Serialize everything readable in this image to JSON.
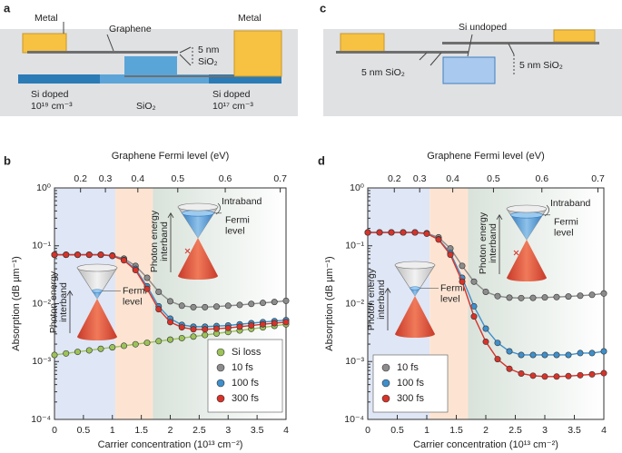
{
  "diagram_a": {
    "panel": "a",
    "metal_left": "Metal",
    "graphene": "Graphene",
    "oxide_thickness": "5 nm",
    "oxide_material": "SiO₂",
    "doped_left": "Si doped",
    "doped_left_level": "10¹⁹ cm⁻³",
    "substrate": "SiO₂",
    "doped_right": "Si doped",
    "doped_right_level": "10¹⁷ cm⁻³",
    "metal_right": "Metal"
  },
  "diagram_c": {
    "panel": "c",
    "undoped": "Si undoped",
    "oxide_left": "5 nm SiO₂",
    "oxide_right": "5 nm SiO₂"
  },
  "chart_data": [
    {
      "type": "line",
      "panel": "b",
      "x2label": "Graphene Fermi level (eV)",
      "xlabel": "Carrier concentration (10¹³ cm⁻²)",
      "ylabel": "Absorption (dB µm⁻¹)",
      "log_y": true,
      "xlim": [
        0,
        4
      ],
      "xticks": [
        0,
        0.5,
        1,
        1.5,
        2,
        2.5,
        3,
        3.5,
        4
      ],
      "x2ticks": [
        0.2,
        0.3,
        0.4,
        0.5,
        0.6,
        0.7
      ],
      "ylim": [
        0.0001,
        1
      ],
      "yticks": [
        {
          "value": 0.0001,
          "label": "10⁻⁴"
        },
        {
          "value": 0.001,
          "label": "10⁻³"
        },
        {
          "value": 0.01,
          "label": "10⁻²"
        },
        {
          "value": 0.1,
          "label": "10⁻¹"
        },
        {
          "value": 1,
          "label": "10⁰"
        }
      ],
      "legend": "lower right",
      "shaded_regions": [
        {
          "from": 0,
          "to": 1.05,
          "color": "#dfe6f5"
        },
        {
          "from": 1.05,
          "to": 1.7,
          "color": "#fde4d2"
        },
        {
          "from": 1.7,
          "to": 4,
          "color": "#d8e2da"
        }
      ],
      "insets": [
        {
          "texts": [
            "Photon energy",
            "interband",
            "Fermi",
            "level"
          ]
        },
        {
          "texts": [
            "Intraband",
            "Fermi",
            "level",
            "Photon energy",
            "interband"
          ]
        }
      ],
      "x": [
        0,
        0.2,
        0.4,
        0.6,
        0.8,
        1,
        1.2,
        1.4,
        1.6,
        1.8,
        2,
        2.2,
        2.4,
        2.6,
        2.8,
        3,
        3.2,
        3.4,
        3.6,
        3.8,
        4
      ],
      "series": [
        {
          "name": "Si loss",
          "color": "#9cc25a",
          "values": [
            0.0013,
            0.00138,
            0.00147,
            0.00156,
            0.00166,
            0.00176,
            0.00187,
            0.00199,
            0.00211,
            0.00225,
            0.00239,
            0.00254,
            0.0027,
            0.00287,
            0.00305,
            0.00324,
            0.00344,
            0.00366,
            0.00389,
            0.00413,
            0.0044
          ]
        },
        {
          "name": "10 fs",
          "color": "#8c8c8c",
          "values": [
            0.07,
            0.07,
            0.07,
            0.07,
            0.07,
            0.068,
            0.06,
            0.045,
            0.028,
            0.016,
            0.011,
            0.0092,
            0.0087,
            0.0087,
            0.0089,
            0.0092,
            0.0095,
            0.0099,
            0.0103,
            0.0107,
            0.0112
          ]
        },
        {
          "name": "100 fs",
          "color": "#3f8fcb",
          "values": [
            0.07,
            0.07,
            0.07,
            0.07,
            0.07,
            0.067,
            0.057,
            0.04,
            0.02,
            0.009,
            0.0055,
            0.0043,
            0.004,
            0.004,
            0.0041,
            0.0042,
            0.0044,
            0.0046,
            0.0048,
            0.005,
            0.0052
          ]
        },
        {
          "name": "300 fs",
          "color": "#d6332a",
          "values": [
            0.07,
            0.07,
            0.07,
            0.07,
            0.07,
            0.067,
            0.056,
            0.038,
            0.018,
            0.008,
            0.0048,
            0.0039,
            0.0036,
            0.0036,
            0.0037,
            0.0038,
            0.004,
            0.0042,
            0.0044,
            0.0046,
            0.0048
          ]
        }
      ]
    },
    {
      "type": "line",
      "panel": "d",
      "x2label": "Graphene Fermi level (eV)",
      "xlabel": "Carrier concentration (10¹³ cm⁻²)",
      "ylabel": "Absorption (dB µm⁻¹)",
      "log_y": true,
      "xlim": [
        0,
        4
      ],
      "xticks": [
        0,
        0.5,
        1,
        1.5,
        2,
        2.5,
        3,
        3.5,
        4
      ],
      "x2ticks": [
        0.2,
        0.3,
        0.4,
        0.5,
        0.6,
        0.7
      ],
      "ylim": [
        0.0001,
        1
      ],
      "yticks": [
        {
          "value": 0.0001,
          "label": "10⁻⁴"
        },
        {
          "value": 0.001,
          "label": "10⁻³"
        },
        {
          "value": 0.01,
          "label": "10⁻²"
        },
        {
          "value": 0.1,
          "label": "10⁻¹"
        },
        {
          "value": 1,
          "label": "10⁰"
        }
      ],
      "legend": "lower left",
      "shaded_regions": [
        {
          "from": 0,
          "to": 1.05,
          "color": "#dfe6f5"
        },
        {
          "from": 1.05,
          "to": 1.7,
          "color": "#fde4d2"
        },
        {
          "from": 1.7,
          "to": 4,
          "color": "#d8e2da"
        }
      ],
      "insets": [
        {
          "texts": [
            "Photon energy",
            "interband",
            "Fermi",
            "level"
          ]
        },
        {
          "texts": [
            "Intraband",
            "Fermi",
            "level",
            "Photon energy",
            "interband"
          ]
        }
      ],
      "x": [
        0,
        0.2,
        0.4,
        0.6,
        0.8,
        1,
        1.2,
        1.4,
        1.6,
        1.8,
        2,
        2.2,
        2.4,
        2.6,
        2.8,
        3,
        3.2,
        3.4,
        3.6,
        3.8,
        4
      ],
      "series": [
        {
          "name": "10 fs",
          "color": "#8c8c8c",
          "values": [
            0.17,
            0.17,
            0.17,
            0.17,
            0.17,
            0.165,
            0.14,
            0.09,
            0.045,
            0.024,
            0.016,
            0.0135,
            0.0127,
            0.0125,
            0.0126,
            0.0128,
            0.013,
            0.0133,
            0.0137,
            0.0142,
            0.015
          ]
        },
        {
          "name": "100 fs",
          "color": "#3f8fcb",
          "values": [
            0.17,
            0.17,
            0.17,
            0.17,
            0.17,
            0.163,
            0.13,
            0.075,
            0.028,
            0.009,
            0.0037,
            0.0021,
            0.0015,
            0.0013,
            0.0013,
            0.0013,
            0.0013,
            0.0013,
            0.0014,
            0.0014,
            0.0015
          ]
        },
        {
          "name": "300 fs",
          "color": "#d6332a",
          "values": [
            0.17,
            0.17,
            0.17,
            0.17,
            0.17,
            0.162,
            0.128,
            0.07,
            0.024,
            0.006,
            0.0022,
            0.0011,
            0.00075,
            0.00062,
            0.00057,
            0.00055,
            0.00055,
            0.00056,
            0.00058,
            0.0006,
            0.00063
          ]
        }
      ]
    }
  ]
}
